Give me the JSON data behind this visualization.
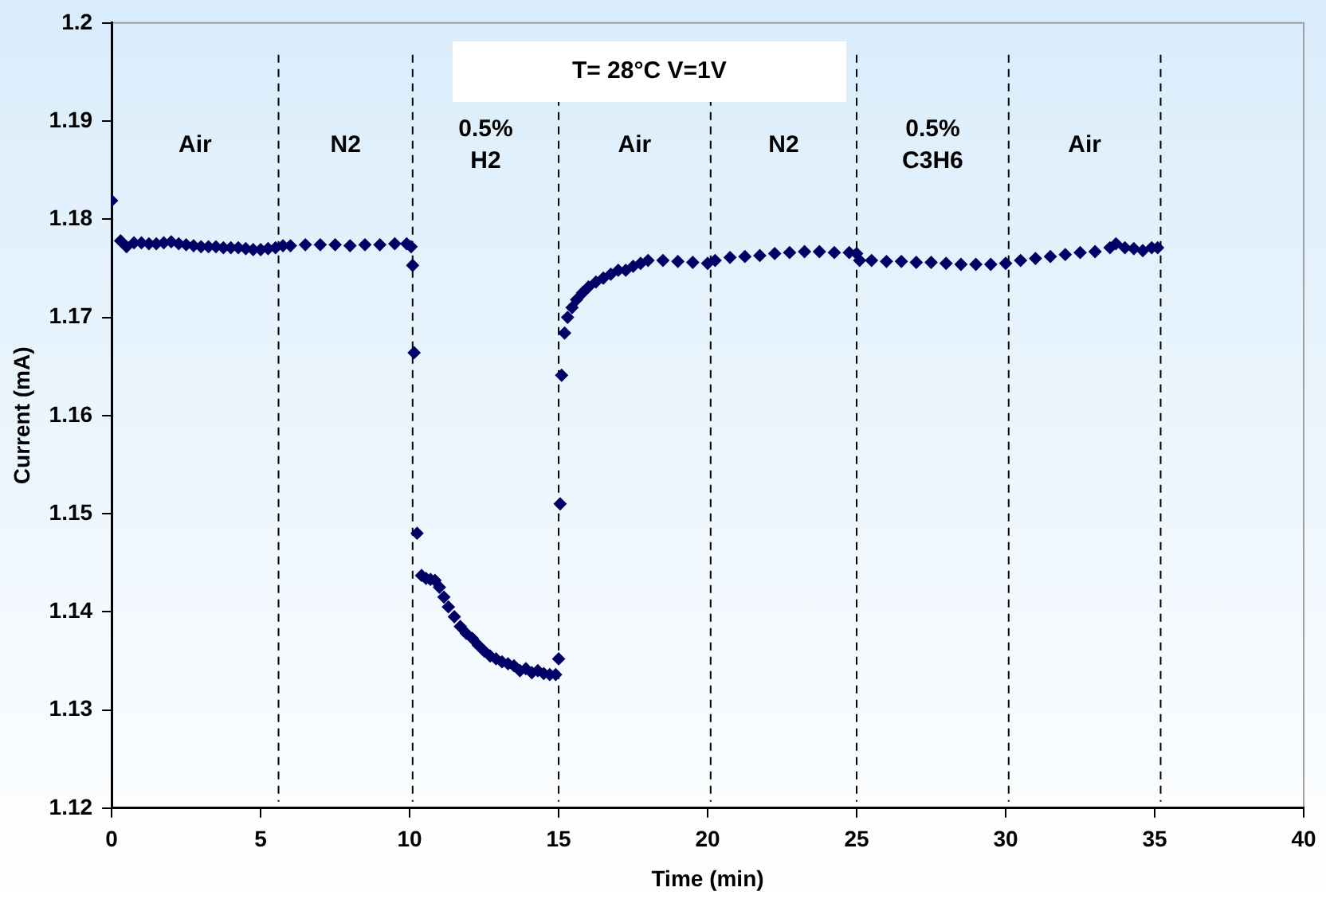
{
  "chart_data": {
    "type": "scatter",
    "xlabel": "Time (min)",
    "ylabel": "Current (mA)",
    "color": "#000066",
    "marker": "diamond",
    "x": [
      0,
      0.3,
      0.5,
      0.75,
      1.0,
      1.25,
      1.5,
      1.75,
      2.0,
      2.25,
      2.5,
      2.75,
      3.0,
      3.25,
      3.5,
      3.75,
      4.0,
      4.25,
      4.5,
      4.75,
      5.0,
      5.25,
      5.5,
      5.75,
      6.0,
      6.5,
      7.0,
      7.5,
      8.0,
      8.5,
      9.0,
      9.5,
      9.9,
      10.05,
      10.1,
      10.15,
      10.25,
      10.4,
      10.55,
      10.7,
      10.85,
      11.0,
      11.15,
      11.3,
      11.5,
      11.7,
      11.9,
      12.1,
      12.3,
      12.5,
      12.7,
      12.9,
      13.1,
      13.3,
      13.5,
      13.7,
      13.9,
      14.1,
      14.3,
      14.5,
      14.7,
      14.9,
      15.0,
      15.05,
      15.1,
      15.2,
      15.3,
      15.45,
      15.6,
      15.8,
      16.0,
      16.25,
      16.5,
      16.75,
      17.0,
      17.25,
      17.5,
      17.75,
      18.0,
      18.5,
      19.0,
      19.5,
      20.0,
      20.25,
      20.75,
      21.25,
      21.75,
      22.25,
      22.75,
      23.25,
      23.75,
      24.25,
      24.75,
      25.0,
      25.1,
      25.5,
      26.0,
      26.5,
      27.0,
      27.5,
      28.0,
      28.5,
      29.0,
      29.5,
      30.0,
      30.5,
      31.0,
      31.5,
      32.0,
      32.5,
      33.0,
      33.5,
      33.7,
      34.0,
      34.3,
      34.6,
      34.9,
      35.1
    ],
    "values": [
      1.1819,
      1.1778,
      1.1772,
      1.1776,
      1.1776,
      1.1775,
      1.1775,
      1.1776,
      1.1777,
      1.1775,
      1.1774,
      1.1773,
      1.1772,
      1.1772,
      1.1772,
      1.1771,
      1.1771,
      1.1771,
      1.177,
      1.1769,
      1.1769,
      1.177,
      1.1771,
      1.1773,
      1.1773,
      1.1774,
      1.1774,
      1.1774,
      1.1773,
      1.1774,
      1.1774,
      1.1775,
      1.1775,
      1.1772,
      1.1753,
      1.1664,
      1.148,
      1.1437,
      1.1434,
      1.1433,
      1.1432,
      1.1425,
      1.1415,
      1.1405,
      1.1395,
      1.1385,
      1.1378,
      1.1373,
      1.1366,
      1.136,
      1.1355,
      1.1352,
      1.1349,
      1.1347,
      1.1345,
      1.134,
      1.1342,
      1.1338,
      1.134,
      1.1337,
      1.1336,
      1.1336,
      1.1352,
      1.151,
      1.1641,
      1.1684,
      1.17,
      1.171,
      1.1718,
      1.1725,
      1.1731,
      1.1736,
      1.174,
      1.1744,
      1.1748,
      1.1748,
      1.1752,
      1.1755,
      1.1758,
      1.1758,
      1.1757,
      1.1756,
      1.1755,
      1.1758,
      1.1761,
      1.1762,
      1.1763,
      1.1765,
      1.1766,
      1.1767,
      1.1767,
      1.1766,
      1.1766,
      1.1765,
      1.1758,
      1.1758,
      1.1757,
      1.1757,
      1.1756,
      1.1756,
      1.1755,
      1.1754,
      1.1754,
      1.1754,
      1.1755,
      1.1758,
      1.176,
      1.1762,
      1.1764,
      1.1766,
      1.1767,
      1.1771,
      1.1775,
      1.1771,
      1.177,
      1.1768,
      1.1771,
      1.1771
    ],
    "xlim": [
      0,
      40
    ],
    "xticks": [
      0,
      5,
      10,
      15,
      20,
      25,
      30,
      35,
      40
    ],
    "ylim": [
      1.12,
      1.2
    ],
    "yticks": [
      1.12,
      1.13,
      1.14,
      1.15,
      1.16,
      1.17,
      1.18,
      1.19,
      {
        "value": 1.2,
        "label": "1.2"
      }
    ],
    "ref_lines": [
      {
        "axis": "x",
        "value": 5.6,
        "line_style": "dashed",
        "color": "#000000"
      },
      {
        "axis": "x",
        "value": 10.1,
        "line_style": "dashed",
        "color": "#000000"
      },
      {
        "axis": "x",
        "value": 15.0,
        "line_style": "dashed",
        "color": "#000000"
      },
      {
        "axis": "x",
        "value": 20.1,
        "line_style": "dashed",
        "color": "#000000"
      },
      {
        "axis": "x",
        "value": 25.0,
        "line_style": "dashed",
        "color": "#000000"
      },
      {
        "axis": "x",
        "value": 30.1,
        "line_style": "dashed",
        "color": "#000000"
      },
      {
        "axis": "x",
        "value": 35.2,
        "line_style": "dashed",
        "color": "#000000"
      }
    ],
    "annotations": [
      "T= 28°C  V=1V",
      "Air",
      "N2",
      "0.5%\nH2",
      "Air",
      "N2",
      "0.5%\nC3H6",
      "Air"
    ]
  }
}
